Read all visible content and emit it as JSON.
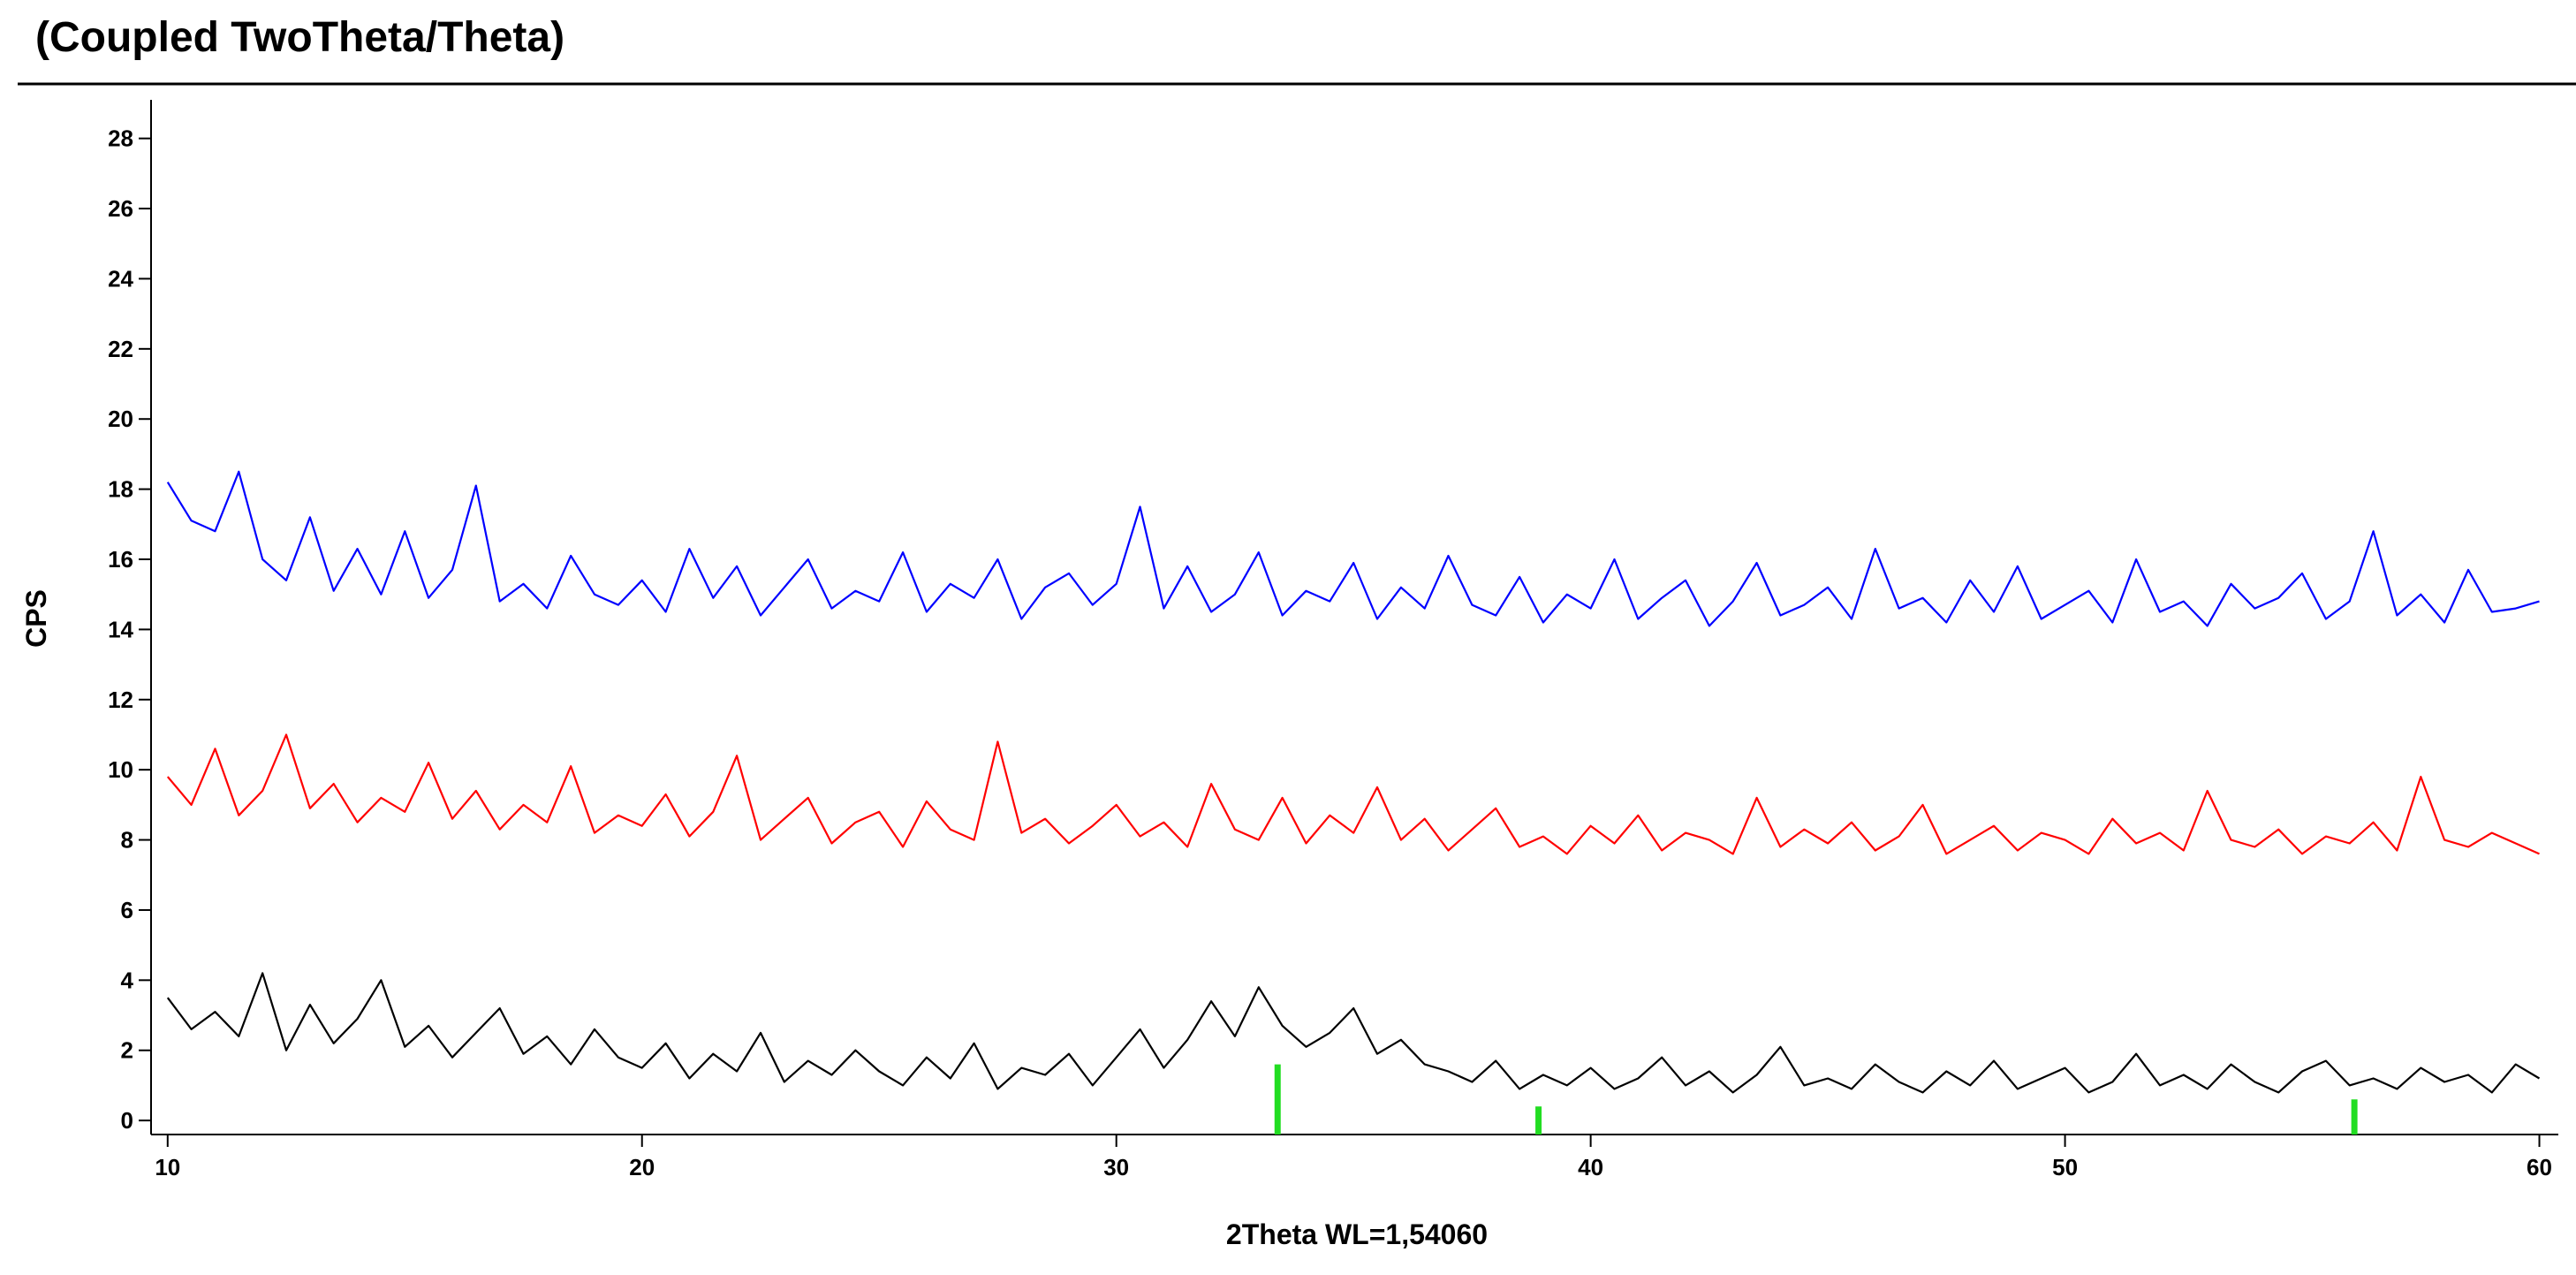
{
  "chart_data": {
    "type": "line",
    "title": "(Coupled TwoTheta/Theta)",
    "x_label": "2Theta WL=1,54060",
    "y_label": "CPS",
    "xlim": [
      9.65,
      60.4
    ],
    "ylim": [
      -0.4,
      29.1
    ],
    "xticks": [
      10,
      20,
      30,
      40,
      50,
      60
    ],
    "yticks": [
      0,
      2,
      4,
      6,
      8,
      10,
      12,
      14,
      16,
      18,
      20,
      22,
      24,
      26,
      28
    ],
    "x": [
      10,
      10.5,
      11,
      11.5,
      12,
      12.5,
      13,
      13.5,
      14,
      14.5,
      15,
      15.5,
      16,
      16.5,
      17,
      17.5,
      18,
      18.5,
      19,
      19.5,
      20,
      20.5,
      21,
      21.5,
      22,
      22.5,
      23,
      23.5,
      24,
      24.5,
      25,
      25.5,
      26,
      26.5,
      27,
      27.5,
      28,
      28.5,
      29,
      29.5,
      30,
      30.5,
      31,
      31.5,
      32,
      32.5,
      33,
      33.5,
      34,
      34.5,
      35,
      35.5,
      36,
      36.5,
      37,
      37.5,
      38,
      38.5,
      39,
      39.5,
      40,
      40.5,
      41,
      41.5,
      42,
      42.5,
      43,
      43.5,
      44,
      44.5,
      45,
      45.5,
      46,
      46.5,
      47,
      47.5,
      48,
      48.5,
      49,
      49.5,
      50,
      50.5,
      51,
      51.5,
      52,
      52.5,
      53,
      53.5,
      54,
      54.5,
      55,
      55.5,
      56,
      56.5,
      57,
      57.5,
      58,
      58.5,
      59,
      59.5,
      60
    ],
    "series": [
      {
        "color": "#0000ff",
        "values": [
          18.2,
          17.1,
          16.8,
          18.5,
          16.0,
          15.4,
          17.2,
          15.1,
          16.3,
          15.0,
          16.8,
          14.9,
          15.7,
          18.1,
          14.8,
          15.3,
          14.6,
          16.1,
          15.0,
          14.7,
          15.4,
          14.5,
          16.3,
          14.9,
          15.8,
          14.4,
          15.2,
          16.0,
          14.6,
          15.1,
          14.8,
          16.2,
          14.5,
          15.3,
          14.9,
          16.0,
          14.3,
          15.2,
          15.6,
          14.7,
          15.3,
          17.5,
          14.6,
          15.8,
          14.5,
          15.0,
          16.2,
          14.4,
          15.1,
          14.8,
          15.9,
          14.3,
          15.2,
          14.6,
          16.1,
          14.7,
          14.4,
          15.5,
          14.2,
          15.0,
          14.6,
          16.0,
          14.3,
          14.9,
          15.4,
          14.1,
          14.8,
          15.9,
          14.4,
          14.7,
          15.2,
          14.3,
          16.3,
          14.6,
          14.9,
          14.2,
          15.4,
          14.5,
          15.8,
          14.3,
          14.7,
          15.1,
          14.2,
          16.0,
          14.5,
          14.8,
          14.1,
          15.3,
          14.6,
          14.9,
          15.6,
          14.3,
          14.8,
          16.8,
          14.4,
          15.0,
          14.2,
          15.7,
          14.5,
          14.6,
          14.8
        ]
      },
      {
        "color": "#ff0000",
        "values": [
          9.8,
          9.0,
          10.6,
          8.7,
          9.4,
          11.0,
          8.9,
          9.6,
          8.5,
          9.2,
          8.8,
          10.2,
          8.6,
          9.4,
          8.3,
          9.0,
          8.5,
          10.1,
          8.2,
          8.7,
          8.4,
          9.3,
          8.1,
          8.8,
          10.4,
          8.0,
          8.6,
          9.2,
          7.9,
          8.5,
          8.8,
          7.8,
          9.1,
          8.3,
          8.0,
          10.8,
          8.2,
          8.6,
          7.9,
          8.4,
          9.0,
          8.1,
          8.5,
          7.8,
          9.6,
          8.3,
          8.0,
          9.2,
          7.9,
          8.7,
          8.2,
          9.5,
          8.0,
          8.6,
          7.7,
          8.3,
          8.9,
          7.8,
          8.1,
          7.6,
          8.4,
          7.9,
          8.7,
          7.7,
          8.2,
          8.0,
          7.6,
          9.2,
          7.8,
          8.3,
          7.9,
          8.5,
          7.7,
          8.1,
          9.0,
          7.6,
          8.0,
          8.4,
          7.7,
          8.2,
          8.0,
          7.6,
          8.6,
          7.9,
          8.2,
          7.7,
          9.4,
          8.0,
          7.8,
          8.3,
          7.6,
          8.1,
          7.9,
          8.5,
          7.7,
          9.8,
          8.0,
          7.8,
          8.2,
          7.9,
          7.6
        ]
      },
      {
        "color": "#000000",
        "values": [
          3.5,
          2.6,
          3.1,
          2.4,
          4.2,
          2.0,
          3.3,
          2.2,
          2.9,
          4.0,
          2.1,
          2.7,
          1.8,
          2.5,
          3.2,
          1.9,
          2.4,
          1.6,
          2.6,
          1.8,
          1.5,
          2.2,
          1.2,
          1.9,
          1.4,
          2.5,
          1.1,
          1.7,
          1.3,
          2.0,
          1.4,
          1.0,
          1.8,
          1.2,
          2.2,
          0.9,
          1.5,
          1.3,
          1.9,
          1.0,
          1.8,
          2.6,
          1.5,
          2.3,
          3.4,
          2.4,
          3.8,
          2.7,
          2.1,
          2.5,
          3.2,
          1.9,
          2.3,
          1.6,
          1.4,
          1.1,
          1.7,
          0.9,
          1.3,
          1.0,
          1.5,
          0.9,
          1.2,
          1.8,
          1.0,
          1.4,
          0.8,
          1.3,
          2.1,
          1.0,
          1.2,
          0.9,
          1.6,
          1.1,
          0.8,
          1.4,
          1.0,
          1.7,
          0.9,
          1.2,
          1.5,
          0.8,
          1.1,
          1.9,
          1.0,
          1.3,
          0.9,
          1.6,
          1.1,
          0.8,
          1.4,
          1.7,
          1.0,
          1.2,
          0.9,
          1.5,
          1.1,
          1.3,
          0.8,
          1.6,
          1.2
        ]
      }
    ],
    "reference": {
      "color": "#22dd22",
      "x": [
        33.4,
        38.9,
        56.1
      ],
      "values": [
        1.6,
        0.4,
        0.6
      ]
    }
  }
}
